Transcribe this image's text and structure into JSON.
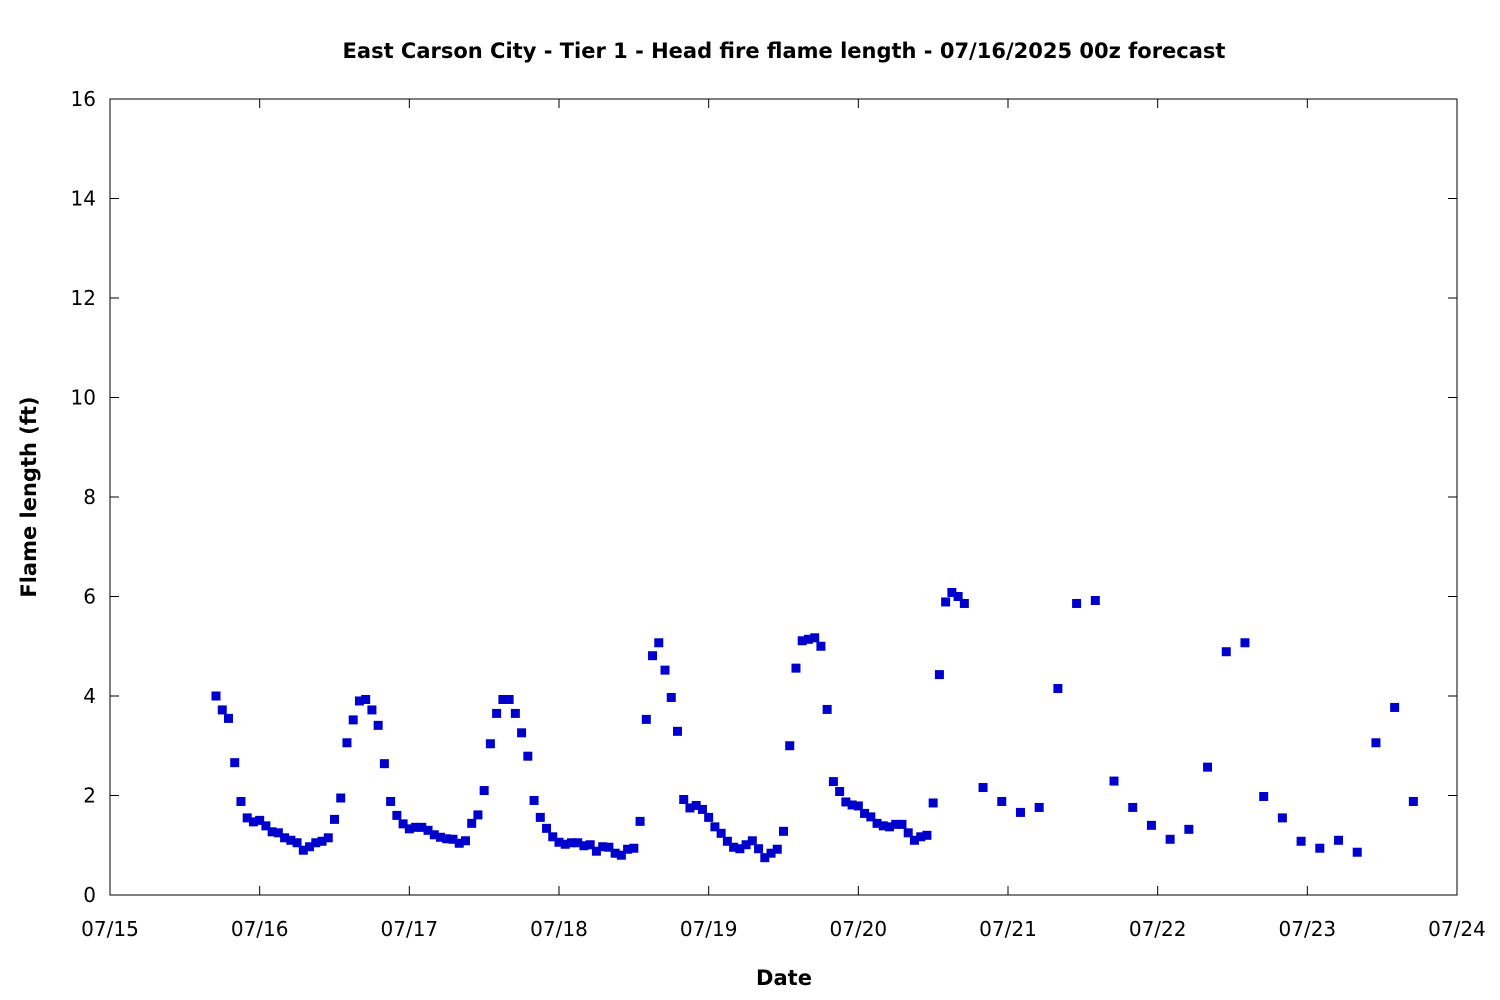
{
  "chart_data": {
    "type": "scatter",
    "title": "East Carson City - Tier 1 - Head fire flame length - 07/16/2025 00z forecast",
    "xlabel": "Date",
    "ylabel": "Flame length (ft)",
    "xlim": [
      "07/15",
      "07/24"
    ],
    "ylim": [
      0,
      16
    ],
    "x_tick_labels": [
      "07/15",
      "07/16",
      "07/17",
      "07/18",
      "07/19",
      "07/20",
      "07/21",
      "07/22",
      "07/23",
      "07/24"
    ],
    "y_tick_labels": [
      "0",
      "2",
      "4",
      "6",
      "8",
      "10",
      "12",
      "14",
      "16"
    ],
    "grid": false,
    "marker": "square",
    "color": "#0000cc",
    "series": [
      {
        "points": [
          [
            "07/15 17:00",
            4.0
          ],
          [
            "07/15 18:00",
            3.72
          ],
          [
            "07/15 19:00",
            3.55
          ],
          [
            "07/15 20:00",
            2.66
          ],
          [
            "07/15 21:00",
            1.88
          ],
          [
            "07/15 22:00",
            1.55
          ],
          [
            "07/15 23:00",
            1.47
          ],
          [
            "07/16 00:00",
            1.5
          ],
          [
            "07/16 01:00",
            1.39
          ],
          [
            "07/16 02:00",
            1.27
          ],
          [
            "07/16 03:00",
            1.25
          ],
          [
            "07/16 04:00",
            1.15
          ],
          [
            "07/16 05:00",
            1.1
          ],
          [
            "07/16 06:00",
            1.05
          ],
          [
            "07/16 07:00",
            0.9
          ],
          [
            "07/16 08:00",
            0.97
          ],
          [
            "07/16 09:00",
            1.05
          ],
          [
            "07/16 10:00",
            1.08
          ],
          [
            "07/16 11:00",
            1.15
          ],
          [
            "07/16 12:00",
            1.52
          ],
          [
            "07/16 13:00",
            1.95
          ],
          [
            "07/16 14:00",
            3.06
          ],
          [
            "07/16 15:00",
            3.52
          ],
          [
            "07/16 16:00",
            3.9
          ],
          [
            "07/16 17:00",
            3.93
          ],
          [
            "07/16 18:00",
            3.72
          ],
          [
            "07/16 19:00",
            3.41
          ],
          [
            "07/16 20:00",
            2.64
          ],
          [
            "07/16 21:00",
            1.88
          ],
          [
            "07/16 22:00",
            1.6
          ],
          [
            "07/16 23:00",
            1.43
          ],
          [
            "07/17 00:00",
            1.33
          ],
          [
            "07/17 01:00",
            1.36
          ],
          [
            "07/17 02:00",
            1.36
          ],
          [
            "07/17 03:00",
            1.3
          ],
          [
            "07/17 04:00",
            1.21
          ],
          [
            "07/17 05:00",
            1.16
          ],
          [
            "07/17 06:00",
            1.13
          ],
          [
            "07/17 07:00",
            1.12
          ],
          [
            "07/17 08:00",
            1.04
          ],
          [
            "07/17 09:00",
            1.09
          ],
          [
            "07/17 10:00",
            1.44
          ],
          [
            "07/17 11:00",
            1.61
          ],
          [
            "07/17 12:00",
            2.1
          ],
          [
            "07/17 13:00",
            3.04
          ],
          [
            "07/17 14:00",
            3.65
          ],
          [
            "07/17 15:00",
            3.93
          ],
          [
            "07/17 16:00",
            3.93
          ],
          [
            "07/17 17:00",
            3.65
          ],
          [
            "07/17 18:00",
            3.26
          ],
          [
            "07/17 19:00",
            2.79
          ],
          [
            "07/17 20:00",
            1.9
          ],
          [
            "07/17 21:00",
            1.56
          ],
          [
            "07/17 22:00",
            1.34
          ],
          [
            "07/17 23:00",
            1.17
          ],
          [
            "07/18 00:00",
            1.06
          ],
          [
            "07/18 01:00",
            1.02
          ],
          [
            "07/18 02:00",
            1.05
          ],
          [
            "07/18 03:00",
            1.05
          ],
          [
            "07/18 04:00",
            0.99
          ],
          [
            "07/18 05:00",
            1.01
          ],
          [
            "07/18 06:00",
            0.88
          ],
          [
            "07/18 07:00",
            0.97
          ],
          [
            "07/18 08:00",
            0.96
          ],
          [
            "07/18 09:00",
            0.84
          ],
          [
            "07/18 10:00",
            0.8
          ],
          [
            "07/18 11:00",
            0.92
          ],
          [
            "07/18 12:00",
            0.94
          ],
          [
            "07/18 13:00",
            1.48
          ],
          [
            "07/18 14:00",
            3.53
          ],
          [
            "07/18 15:00",
            4.81
          ],
          [
            "07/18 16:00",
            5.07
          ],
          [
            "07/18 17:00",
            4.52
          ],
          [
            "07/18 18:00",
            3.97
          ],
          [
            "07/18 19:00",
            3.29
          ],
          [
            "07/18 20:00",
            1.92
          ],
          [
            "07/18 21:00",
            1.75
          ],
          [
            "07/18 22:00",
            1.8
          ],
          [
            "07/18 23:00",
            1.72
          ],
          [
            "07/19 00:00",
            1.56
          ],
          [
            "07/19 01:00",
            1.37
          ],
          [
            "07/19 02:00",
            1.24
          ],
          [
            "07/19 03:00",
            1.08
          ],
          [
            "07/19 04:00",
            0.96
          ],
          [
            "07/19 05:00",
            0.93
          ],
          [
            "07/19 06:00",
            1.01
          ],
          [
            "07/19 07:00",
            1.09
          ],
          [
            "07/19 08:00",
            0.93
          ],
          [
            "07/19 09:00",
            0.75
          ],
          [
            "07/19 10:00",
            0.84
          ],
          [
            "07/19 11:00",
            0.92
          ],
          [
            "07/19 12:00",
            1.28
          ],
          [
            "07/19 13:00",
            3.0
          ],
          [
            "07/19 14:00",
            4.56
          ],
          [
            "07/19 15:00",
            5.11
          ],
          [
            "07/19 16:00",
            5.14
          ],
          [
            "07/19 17:00",
            5.17
          ],
          [
            "07/19 18:00",
            5.0
          ],
          [
            "07/19 19:00",
            3.73
          ],
          [
            "07/19 20:00",
            2.28
          ],
          [
            "07/19 21:00",
            2.08
          ],
          [
            "07/19 22:00",
            1.87
          ],
          [
            "07/19 23:00",
            1.81
          ],
          [
            "07/20 00:00",
            1.79
          ],
          [
            "07/20 01:00",
            1.64
          ],
          [
            "07/20 02:00",
            1.57
          ],
          [
            "07/20 03:00",
            1.44
          ],
          [
            "07/20 04:00",
            1.39
          ],
          [
            "07/20 05:00",
            1.37
          ],
          [
            "07/20 06:00",
            1.42
          ],
          [
            "07/20 07:00",
            1.42
          ],
          [
            "07/20 08:00",
            1.25
          ],
          [
            "07/20 09:00",
            1.1
          ],
          [
            "07/20 10:00",
            1.17
          ],
          [
            "07/20 11:00",
            1.2
          ],
          [
            "07/20 12:00",
            1.85
          ],
          [
            "07/20 13:00",
            4.43
          ],
          [
            "07/20 14:00",
            5.89
          ],
          [
            "07/20 15:00",
            6.08
          ],
          [
            "07/20 16:00",
            6.0
          ],
          [
            "07/20 17:00",
            5.86
          ],
          [
            "07/20 20:00",
            2.16
          ],
          [
            "07/20 23:00",
            1.88
          ],
          [
            "07/21 02:00",
            1.66
          ],
          [
            "07/21 05:00",
            1.76
          ],
          [
            "07/21 08:00",
            4.15
          ],
          [
            "07/21 11:00",
            5.86
          ],
          [
            "07/21 14:00",
            5.92
          ],
          [
            "07/21 17:00",
            2.29
          ],
          [
            "07/21 20:00",
            1.76
          ],
          [
            "07/21 23:00",
            1.4
          ],
          [
            "07/22 02:00",
            1.12
          ],
          [
            "07/22 05:00",
            1.32
          ],
          [
            "07/22 08:00",
            2.57
          ],
          [
            "07/22 11:00",
            4.89
          ],
          [
            "07/22 14:00",
            5.07
          ],
          [
            "07/22 17:00",
            1.98
          ],
          [
            "07/22 20:00",
            1.55
          ],
          [
            "07/22 23:00",
            1.08
          ],
          [
            "07/23 02:00",
            0.94
          ],
          [
            "07/23 05:00",
            1.1
          ],
          [
            "07/23 08:00",
            0.86
          ],
          [
            "07/23 11:00",
            3.06
          ],
          [
            "07/23 14:00",
            3.77
          ],
          [
            "07/23 17:00",
            1.88
          ]
        ]
      }
    ]
  }
}
